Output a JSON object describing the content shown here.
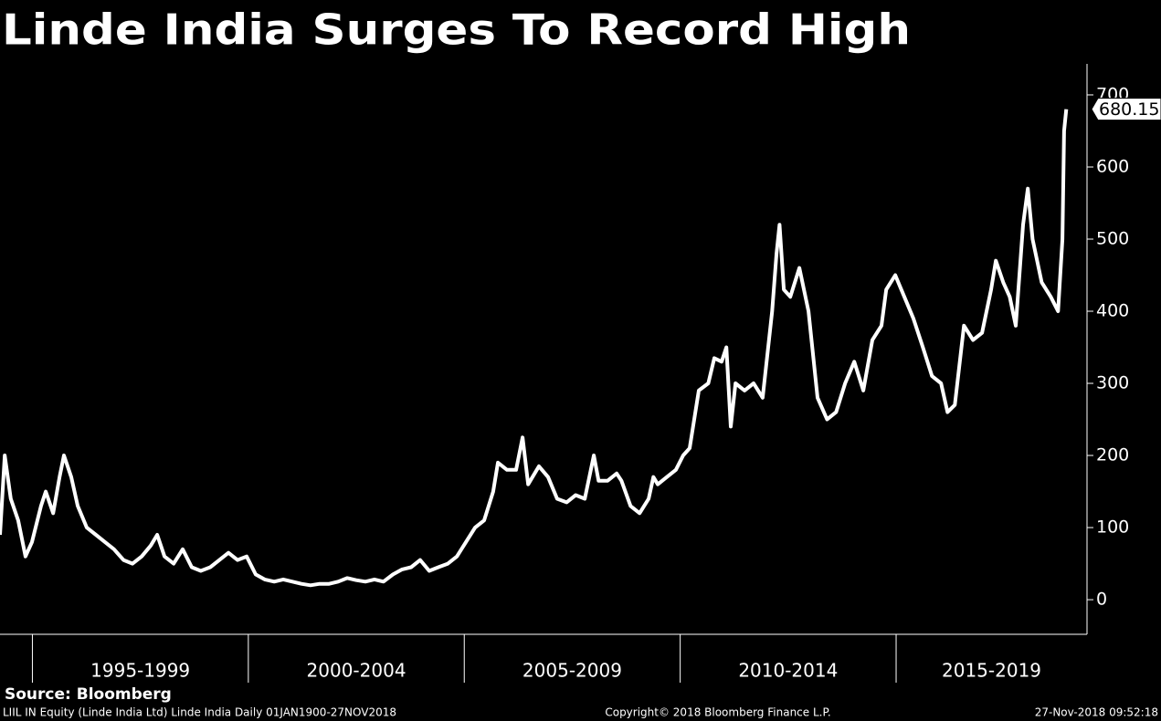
{
  "chart_data": {
    "type": "line",
    "title": "Linde India Surges To Record High",
    "source": "Source: Bloomberg",
    "footer": {
      "left": "LIIL IN Equity (Linde India Ltd) Linde India  Daily 01JAN1900-27NOV2018",
      "center": "Copyright© 2018 Bloomberg Finance L.P.",
      "right": "27-Nov-2018 09:52:18"
    },
    "x": [
      1994.25,
      1994.36,
      1994.5,
      1994.67,
      1994.84,
      1994.99,
      1995.2,
      1995.31,
      1995.48,
      1995.63,
      1995.73,
      1995.9,
      1996.05,
      1996.26,
      1996.47,
      1996.68,
      1996.89,
      1997.11,
      1997.32,
      1997.53,
      1997.74,
      1997.89,
      1998.06,
      1998.27,
      1998.48,
      1998.69,
      1998.9,
      1999.12,
      1999.33,
      1999.54,
      1999.75,
      1999.96,
      2000.17,
      2000.38,
      2000.6,
      2000.81,
      2001.02,
      2001.23,
      2001.44,
      2001.65,
      2001.87,
      2002.08,
      2002.29,
      2002.5,
      2002.71,
      2002.92,
      2003.13,
      2003.35,
      2003.56,
      2003.77,
      2003.98,
      2004.19,
      2004.4,
      2004.62,
      2004.83,
      2005.04,
      2005.25,
      2005.46,
      2005.67,
      2005.78,
      2005.99,
      2006.2,
      2006.35,
      2006.48,
      2006.73,
      2006.94,
      2007.15,
      2007.37,
      2007.58,
      2007.79,
      2008.0,
      2008.11,
      2008.32,
      2008.53,
      2008.64,
      2008.85,
      2009.06,
      2009.27,
      2009.38,
      2009.48,
      2009.69,
      2009.9,
      2010.07,
      2010.22,
      2010.43,
      2010.65,
      2010.79,
      2010.96,
      2011.07,
      2011.17,
      2011.28,
      2011.49,
      2011.7,
      2011.91,
      2012.13,
      2012.23,
      2012.3,
      2012.4,
      2012.55,
      2012.76,
      2012.97,
      2013.18,
      2013.4,
      2013.61,
      2013.82,
      2014.03,
      2014.24,
      2014.45,
      2014.66,
      2014.77,
      2014.98,
      2015.19,
      2015.4,
      2015.62,
      2015.83,
      2016.04,
      2016.19,
      2016.36,
      2016.57,
      2016.78,
      2016.99,
      2017.2,
      2017.31,
      2017.48,
      2017.63,
      2017.77,
      2017.94,
      2018.05,
      2018.16,
      2018.37,
      2018.58,
      2018.75,
      2018.85,
      2018.89,
      2018.94
    ],
    "series": [
      {
        "name": "Linde India",
        "color": "#ffffff",
        "values": [
          90,
          200,
          140,
          110,
          60,
          80,
          130,
          150,
          120,
          170,
          200,
          170,
          130,
          100,
          90,
          80,
          70,
          55,
          50,
          60,
          75,
          90,
          60,
          50,
          70,
          45,
          40,
          45,
          55,
          65,
          55,
          60,
          35,
          28,
          25,
          28,
          25,
          22,
          20,
          22,
          22,
          25,
          30,
          27,
          25,
          28,
          25,
          35,
          42,
          45,
          55,
          40,
          45,
          50,
          60,
          80,
          100,
          110,
          150,
          190,
          180,
          180,
          225,
          160,
          185,
          170,
          140,
          135,
          145,
          140,
          200,
          165,
          165,
          175,
          165,
          130,
          120,
          140,
          170,
          160,
          170,
          180,
          200,
          210,
          290,
          300,
          335,
          330,
          350,
          240,
          300,
          290,
          300,
          280,
          400,
          480,
          520,
          430,
          420,
          460,
          400,
          280,
          250,
          260,
          300,
          330,
          290,
          360,
          380,
          430,
          450,
          420,
          390,
          350,
          310,
          300,
          260,
          270,
          380,
          360,
          370,
          430,
          470,
          440,
          420,
          380,
          520,
          570,
          500,
          440,
          420,
          400,
          500,
          650,
          680.15
        ]
      }
    ],
    "xlim": [
      1994.25,
      2019.42
    ],
    "ylim": [
      -48,
      743
    ],
    "yticks": [
      0,
      100,
      200,
      300,
      400,
      500,
      600,
      700
    ],
    "x_periods": [
      {
        "label": "1995-1999",
        "start": 1995,
        "end": 2000
      },
      {
        "label": "2000-2004",
        "start": 2000,
        "end": 2005
      },
      {
        "label": "2005-2009",
        "start": 2005,
        "end": 2010
      },
      {
        "label": "2010-2014",
        "start": 2010,
        "end": 2015
      },
      {
        "label": "2015-2019",
        "start": 2015,
        "end": 2020
      }
    ]
  }
}
